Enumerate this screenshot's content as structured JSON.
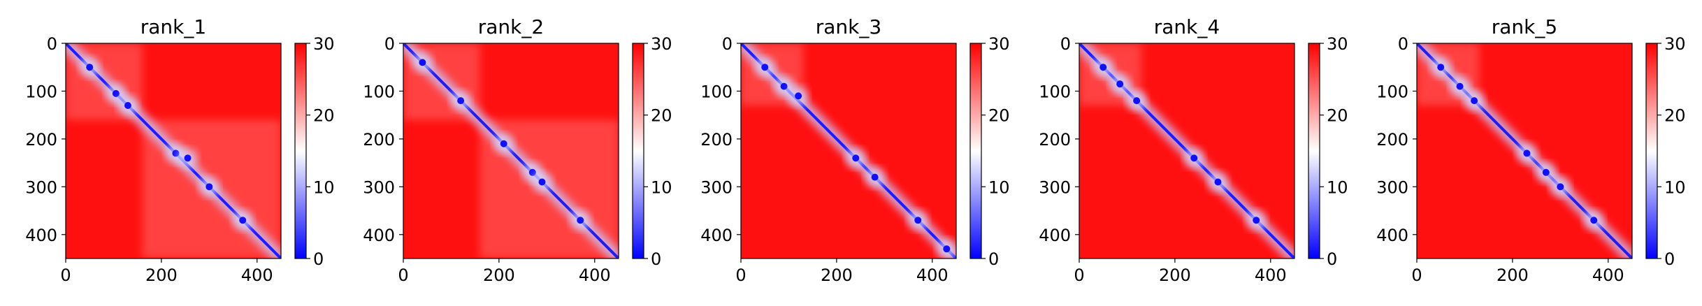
{
  "chart_data": [
    {
      "type": "heatmap",
      "title": "rank_1",
      "xlim": [
        0,
        450
      ],
      "ylim": [
        450,
        0
      ],
      "xticks": [
        "0",
        "200",
        "400"
      ],
      "yticks": [
        "0",
        "100",
        "200",
        "300",
        "400"
      ],
      "colorbar": {
        "ticks": [
          "0",
          "10",
          "20",
          "30"
        ],
        "min": 0,
        "max": 30,
        "colors": [
          "#0000ff",
          "#ffffff",
          "#ff0000"
        ]
      },
      "blocks": [
        [
          0,
          160
        ],
        [
          160,
          450
        ]
      ],
      "hotspots": [
        [
          50,
          50
        ],
        [
          105,
          105
        ],
        [
          130,
          130
        ],
        [
          230,
          230
        ],
        [
          255,
          240
        ],
        [
          300,
          300
        ],
        [
          370,
          370
        ]
      ]
    },
    {
      "type": "heatmap",
      "title": "rank_2",
      "xlim": [
        0,
        450
      ],
      "ylim": [
        450,
        0
      ],
      "xticks": [
        "0",
        "200",
        "400"
      ],
      "yticks": [
        "0",
        "100",
        "200",
        "300",
        "400"
      ],
      "colorbar": {
        "ticks": [
          "0",
          "10",
          "20",
          "30"
        ],
        "min": 0,
        "max": 30,
        "colors": [
          "#0000ff",
          "#ffffff",
          "#ff0000"
        ]
      },
      "blocks": [
        [
          0,
          160
        ],
        [
          160,
          450
        ]
      ],
      "hotspots": [
        [
          40,
          40
        ],
        [
          120,
          120
        ],
        [
          210,
          210
        ],
        [
          270,
          270
        ],
        [
          290,
          290
        ],
        [
          370,
          370
        ]
      ]
    },
    {
      "type": "heatmap",
      "title": "rank_3",
      "xlim": [
        0,
        450
      ],
      "ylim": [
        450,
        0
      ],
      "xticks": [
        "0",
        "200",
        "400"
      ],
      "yticks": [
        "0",
        "100",
        "200",
        "300",
        "400"
      ],
      "colorbar": {
        "ticks": [
          "0",
          "10",
          "20",
          "30"
        ],
        "min": 0,
        "max": 30,
        "colors": [
          "#0000ff",
          "#ffffff",
          "#ff0000"
        ]
      },
      "blocks": [
        [
          0,
          130
        ]
      ],
      "hotspots": [
        [
          50,
          50
        ],
        [
          90,
          90
        ],
        [
          120,
          110
        ],
        [
          240,
          240
        ],
        [
          280,
          280
        ],
        [
          370,
          370
        ],
        [
          430,
          430
        ]
      ]
    },
    {
      "type": "heatmap",
      "title": "rank_4",
      "xlim": [
        0,
        450
      ],
      "ylim": [
        450,
        0
      ],
      "xticks": [
        "0",
        "200",
        "400"
      ],
      "yticks": [
        "0",
        "100",
        "200",
        "300",
        "400"
      ],
      "colorbar": {
        "ticks": [
          "0",
          "10",
          "20",
          "30"
        ],
        "min": 0,
        "max": 30,
        "colors": [
          "#0000ff",
          "#ffffff",
          "#ff0000"
        ]
      },
      "blocks": [
        [
          0,
          130
        ]
      ],
      "hotspots": [
        [
          50,
          50
        ],
        [
          85,
          85
        ],
        [
          120,
          120
        ],
        [
          240,
          240
        ],
        [
          290,
          290
        ],
        [
          370,
          370
        ]
      ]
    },
    {
      "type": "heatmap",
      "title": "rank_5",
      "xlim": [
        0,
        450
      ],
      "ylim": [
        450,
        0
      ],
      "xticks": [
        "0",
        "200",
        "400"
      ],
      "yticks": [
        "0",
        "100",
        "200",
        "300",
        "400"
      ],
      "colorbar": {
        "ticks": [
          "0",
          "10",
          "20",
          "30"
        ],
        "min": 0,
        "max": 30,
        "colors": [
          "#0000ff",
          "#ffffff",
          "#ff0000"
        ]
      },
      "blocks": [
        [
          0,
          130
        ]
      ],
      "hotspots": [
        [
          50,
          50
        ],
        [
          90,
          90
        ],
        [
          120,
          120
        ],
        [
          230,
          230
        ],
        [
          270,
          270
        ],
        [
          300,
          300
        ],
        [
          370,
          370
        ]
      ]
    }
  ]
}
